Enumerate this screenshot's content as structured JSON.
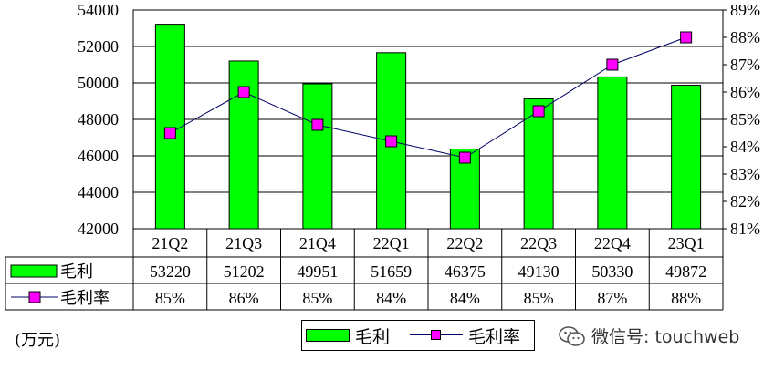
{
  "chart_data": {
    "type": "bar+line",
    "categories": [
      "21Q2",
      "21Q3",
      "21Q4",
      "22Q1",
      "22Q2",
      "22Q3",
      "22Q4",
      "23Q1"
    ],
    "series": [
      {
        "name": "毛利",
        "type": "bar",
        "axis": "left",
        "values": [
          53220,
          51202,
          49951,
          51659,
          46375,
          49130,
          50330,
          49872
        ],
        "labels": [
          "53220",
          "51202",
          "49951",
          "51659",
          "46375",
          "49130",
          "50330",
          "49872"
        ],
        "color": "#00ff00"
      },
      {
        "name": "毛利率",
        "type": "line",
        "axis": "right",
        "values": [
          84.5,
          86.0,
          84.8,
          84.2,
          83.6,
          85.3,
          87.0,
          88.0
        ],
        "labels": [
          "85%",
          "86%",
          "85%",
          "84%",
          "84%",
          "85%",
          "87%",
          "88%"
        ],
        "color": "#ff00ff",
        "line_color": "#000066"
      }
    ],
    "y_left": {
      "min": 42000,
      "max": 54000,
      "ticks": [
        "42000",
        "44000",
        "46000",
        "48000",
        "50000",
        "52000",
        "54000"
      ]
    },
    "y_right": {
      "min": 81,
      "max": 89,
      "ticks": [
        "81%",
        "82%",
        "83%",
        "84%",
        "85%",
        "86%",
        "87%",
        "88%",
        "89%"
      ]
    },
    "grid": true,
    "legend_position": "bottom",
    "unit_label": "(万元)"
  },
  "legend": {
    "bar_label": "毛利",
    "line_label": "毛利率"
  },
  "watermark": {
    "text": "微信号: touchweb"
  }
}
